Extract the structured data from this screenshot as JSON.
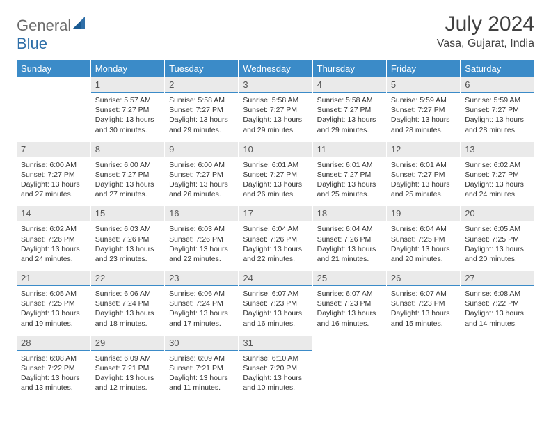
{
  "brand": {
    "textA": "General",
    "textB": "Blue",
    "colorA": "#6b6b6b",
    "colorB": "#2f6fa8"
  },
  "title": "July 2024",
  "location": "Vasa, Gujarat, India",
  "colors": {
    "header_bg": "#3b8bc8",
    "header_text": "#ffffff",
    "daynum_bg": "#eaeaea",
    "divider": "#3b8bc8",
    "background": "#ffffff"
  },
  "weekdays": [
    "Sunday",
    "Monday",
    "Tuesday",
    "Wednesday",
    "Thursday",
    "Friday",
    "Saturday"
  ],
  "weeks": [
    [
      {
        "day": "",
        "lines": [
          "",
          "",
          "",
          ""
        ]
      },
      {
        "day": "1",
        "lines": [
          "Sunrise: 5:57 AM",
          "Sunset: 7:27 PM",
          "Daylight: 13 hours",
          "and 30 minutes."
        ]
      },
      {
        "day": "2",
        "lines": [
          "Sunrise: 5:58 AM",
          "Sunset: 7:27 PM",
          "Daylight: 13 hours",
          "and 29 minutes."
        ]
      },
      {
        "day": "3",
        "lines": [
          "Sunrise: 5:58 AM",
          "Sunset: 7:27 PM",
          "Daylight: 13 hours",
          "and 29 minutes."
        ]
      },
      {
        "day": "4",
        "lines": [
          "Sunrise: 5:58 AM",
          "Sunset: 7:27 PM",
          "Daylight: 13 hours",
          "and 29 minutes."
        ]
      },
      {
        "day": "5",
        "lines": [
          "Sunrise: 5:59 AM",
          "Sunset: 7:27 PM",
          "Daylight: 13 hours",
          "and 28 minutes."
        ]
      },
      {
        "day": "6",
        "lines": [
          "Sunrise: 5:59 AM",
          "Sunset: 7:27 PM",
          "Daylight: 13 hours",
          "and 28 minutes."
        ]
      }
    ],
    [
      {
        "day": "7",
        "lines": [
          "Sunrise: 6:00 AM",
          "Sunset: 7:27 PM",
          "Daylight: 13 hours",
          "and 27 minutes."
        ]
      },
      {
        "day": "8",
        "lines": [
          "Sunrise: 6:00 AM",
          "Sunset: 7:27 PM",
          "Daylight: 13 hours",
          "and 27 minutes."
        ]
      },
      {
        "day": "9",
        "lines": [
          "Sunrise: 6:00 AM",
          "Sunset: 7:27 PM",
          "Daylight: 13 hours",
          "and 26 minutes."
        ]
      },
      {
        "day": "10",
        "lines": [
          "Sunrise: 6:01 AM",
          "Sunset: 7:27 PM",
          "Daylight: 13 hours",
          "and 26 minutes."
        ]
      },
      {
        "day": "11",
        "lines": [
          "Sunrise: 6:01 AM",
          "Sunset: 7:27 PM",
          "Daylight: 13 hours",
          "and 25 minutes."
        ]
      },
      {
        "day": "12",
        "lines": [
          "Sunrise: 6:01 AM",
          "Sunset: 7:27 PM",
          "Daylight: 13 hours",
          "and 25 minutes."
        ]
      },
      {
        "day": "13",
        "lines": [
          "Sunrise: 6:02 AM",
          "Sunset: 7:27 PM",
          "Daylight: 13 hours",
          "and 24 minutes."
        ]
      }
    ],
    [
      {
        "day": "14",
        "lines": [
          "Sunrise: 6:02 AM",
          "Sunset: 7:26 PM",
          "Daylight: 13 hours",
          "and 24 minutes."
        ]
      },
      {
        "day": "15",
        "lines": [
          "Sunrise: 6:03 AM",
          "Sunset: 7:26 PM",
          "Daylight: 13 hours",
          "and 23 minutes."
        ]
      },
      {
        "day": "16",
        "lines": [
          "Sunrise: 6:03 AM",
          "Sunset: 7:26 PM",
          "Daylight: 13 hours",
          "and 22 minutes."
        ]
      },
      {
        "day": "17",
        "lines": [
          "Sunrise: 6:04 AM",
          "Sunset: 7:26 PM",
          "Daylight: 13 hours",
          "and 22 minutes."
        ]
      },
      {
        "day": "18",
        "lines": [
          "Sunrise: 6:04 AM",
          "Sunset: 7:26 PM",
          "Daylight: 13 hours",
          "and 21 minutes."
        ]
      },
      {
        "day": "19",
        "lines": [
          "Sunrise: 6:04 AM",
          "Sunset: 7:25 PM",
          "Daylight: 13 hours",
          "and 20 minutes."
        ]
      },
      {
        "day": "20",
        "lines": [
          "Sunrise: 6:05 AM",
          "Sunset: 7:25 PM",
          "Daylight: 13 hours",
          "and 20 minutes."
        ]
      }
    ],
    [
      {
        "day": "21",
        "lines": [
          "Sunrise: 6:05 AM",
          "Sunset: 7:25 PM",
          "Daylight: 13 hours",
          "and 19 minutes."
        ]
      },
      {
        "day": "22",
        "lines": [
          "Sunrise: 6:06 AM",
          "Sunset: 7:24 PM",
          "Daylight: 13 hours",
          "and 18 minutes."
        ]
      },
      {
        "day": "23",
        "lines": [
          "Sunrise: 6:06 AM",
          "Sunset: 7:24 PM",
          "Daylight: 13 hours",
          "and 17 minutes."
        ]
      },
      {
        "day": "24",
        "lines": [
          "Sunrise: 6:07 AM",
          "Sunset: 7:23 PM",
          "Daylight: 13 hours",
          "and 16 minutes."
        ]
      },
      {
        "day": "25",
        "lines": [
          "Sunrise: 6:07 AM",
          "Sunset: 7:23 PM",
          "Daylight: 13 hours",
          "and 16 minutes."
        ]
      },
      {
        "day": "26",
        "lines": [
          "Sunrise: 6:07 AM",
          "Sunset: 7:23 PM",
          "Daylight: 13 hours",
          "and 15 minutes."
        ]
      },
      {
        "day": "27",
        "lines": [
          "Sunrise: 6:08 AM",
          "Sunset: 7:22 PM",
          "Daylight: 13 hours",
          "and 14 minutes."
        ]
      }
    ],
    [
      {
        "day": "28",
        "lines": [
          "Sunrise: 6:08 AM",
          "Sunset: 7:22 PM",
          "Daylight: 13 hours",
          "and 13 minutes."
        ]
      },
      {
        "day": "29",
        "lines": [
          "Sunrise: 6:09 AM",
          "Sunset: 7:21 PM",
          "Daylight: 13 hours",
          "and 12 minutes."
        ]
      },
      {
        "day": "30",
        "lines": [
          "Sunrise: 6:09 AM",
          "Sunset: 7:21 PM",
          "Daylight: 13 hours",
          "and 11 minutes."
        ]
      },
      {
        "day": "31",
        "lines": [
          "Sunrise: 6:10 AM",
          "Sunset: 7:20 PM",
          "Daylight: 13 hours",
          "and 10 minutes."
        ]
      },
      {
        "day": "",
        "lines": [
          "",
          "",
          "",
          ""
        ]
      },
      {
        "day": "",
        "lines": [
          "",
          "",
          "",
          ""
        ]
      },
      {
        "day": "",
        "lines": [
          "",
          "",
          "",
          ""
        ]
      }
    ]
  ]
}
